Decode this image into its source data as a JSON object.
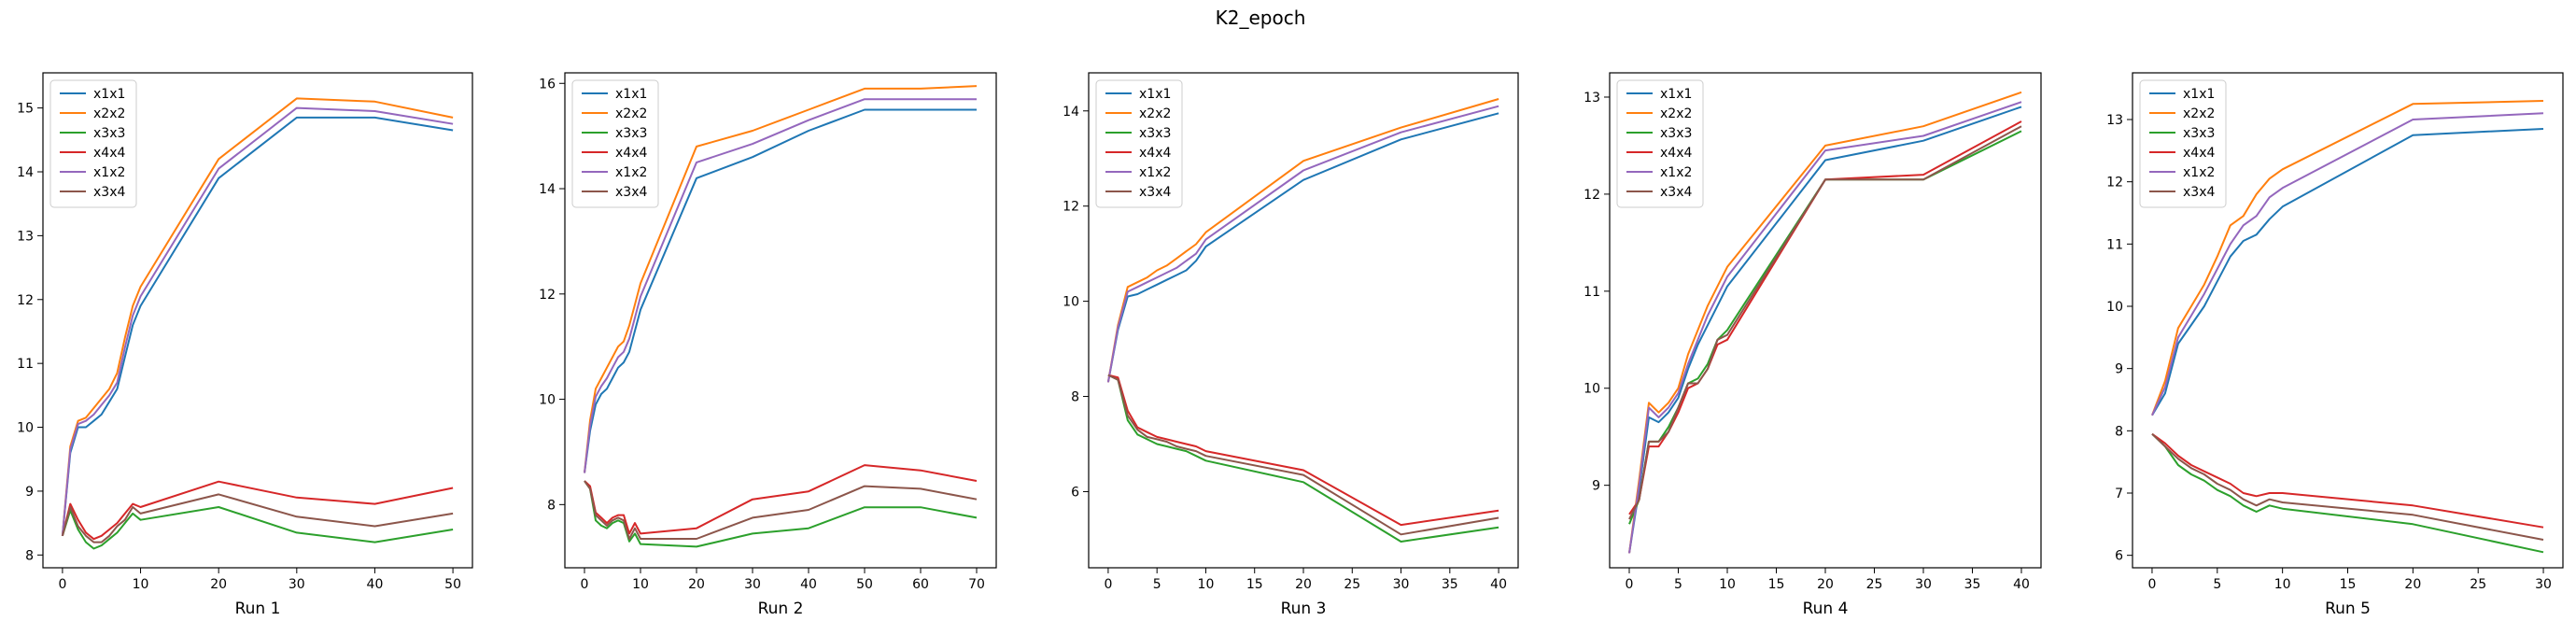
{
  "figure_title": "K2_epoch",
  "chart_data": [
    {
      "type": "line",
      "xlabel": "Run 1",
      "ylabel": "",
      "xlim": [
        -2.5,
        52.5
      ],
      "ylim": [
        7.8,
        15.55
      ],
      "xticks": [
        0,
        10,
        20,
        30,
        40,
        50
      ],
      "yticks": [
        8,
        9,
        10,
        11,
        12,
        13,
        14,
        15
      ],
      "legend_position": "upper-left",
      "grid": false,
      "x": [
        0,
        1,
        2,
        3,
        4,
        5,
        6,
        7,
        8,
        9,
        10,
        20,
        30,
        40,
        50
      ],
      "series": [
        {
          "name": "x1x1",
          "color": "#1f77b4",
          "values": [
            8.3,
            9.6,
            10.0,
            10.0,
            10.1,
            10.2,
            10.4,
            10.6,
            11.1,
            11.6,
            11.9,
            13.9,
            14.85,
            14.85,
            14.65
          ]
        },
        {
          "name": "x2x2",
          "color": "#ff7f0e",
          "values": [
            8.3,
            9.7,
            10.1,
            10.15,
            10.3,
            10.45,
            10.6,
            10.85,
            11.4,
            11.9,
            12.2,
            14.2,
            15.15,
            15.1,
            14.85
          ]
        },
        {
          "name": "x3x3",
          "color": "#2ca02c",
          "values": [
            8.3,
            8.7,
            8.4,
            8.2,
            8.1,
            8.15,
            8.25,
            8.35,
            8.5,
            8.65,
            8.55,
            8.75,
            8.35,
            8.2,
            8.4
          ]
        },
        {
          "name": "x4x4",
          "color": "#d62728",
          "values": [
            8.3,
            8.8,
            8.55,
            8.35,
            8.25,
            8.3,
            8.4,
            8.5,
            8.65,
            8.8,
            8.75,
            9.15,
            8.9,
            8.8,
            9.05
          ]
        },
        {
          "name": "x1x2",
          "color": "#9467bd",
          "values": [
            8.3,
            9.65,
            10.05,
            10.1,
            10.2,
            10.35,
            10.5,
            10.7,
            11.25,
            11.75,
            12.05,
            14.05,
            15.0,
            14.95,
            14.75
          ]
        },
        {
          "name": "x3x4",
          "color": "#8c564b",
          "values": [
            8.3,
            8.75,
            8.45,
            8.3,
            8.2,
            8.2,
            8.3,
            8.45,
            8.55,
            8.75,
            8.65,
            8.95,
            8.6,
            8.45,
            8.65
          ]
        }
      ]
    },
    {
      "type": "line",
      "xlabel": "Run 2",
      "ylabel": "",
      "xlim": [
        -3.5,
        73.5
      ],
      "ylim": [
        6.8,
        16.2
      ],
      "xticks": [
        0,
        10,
        20,
        30,
        40,
        50,
        60,
        70
      ],
      "yticks": [
        8,
        10,
        12,
        14,
        16
      ],
      "legend_position": "upper-left",
      "grid": false,
      "x": [
        0,
        1,
        2,
        3,
        4,
        5,
        6,
        7,
        8,
        9,
        10,
        20,
        30,
        40,
        50,
        60,
        70
      ],
      "series": [
        {
          "name": "x1x1",
          "color": "#1f77b4",
          "values": [
            8.6,
            9.4,
            9.9,
            10.1,
            10.2,
            10.4,
            10.6,
            10.7,
            10.9,
            11.3,
            11.7,
            14.2,
            14.6,
            15.1,
            15.5,
            15.5,
            15.5
          ]
        },
        {
          "name": "x2x2",
          "color": "#ff7f0e",
          "values": [
            8.6,
            9.6,
            10.2,
            10.4,
            10.6,
            10.8,
            11.0,
            11.1,
            11.4,
            11.8,
            12.2,
            14.8,
            15.1,
            15.5,
            15.9,
            15.9,
            15.95
          ]
        },
        {
          "name": "x3x3",
          "color": "#2ca02c",
          "values": [
            8.45,
            8.3,
            7.7,
            7.6,
            7.55,
            7.65,
            7.7,
            7.65,
            7.3,
            7.45,
            7.25,
            7.2,
            7.45,
            7.55,
            7.95,
            7.95,
            7.75
          ]
        },
        {
          "name": "x4x4",
          "color": "#d62728",
          "values": [
            8.45,
            8.35,
            7.85,
            7.75,
            7.65,
            7.75,
            7.8,
            7.8,
            7.45,
            7.65,
            7.45,
            7.55,
            8.1,
            8.25,
            8.75,
            8.65,
            8.45
          ]
        },
        {
          "name": "x1x2",
          "color": "#9467bd",
          "values": [
            8.6,
            9.5,
            10.05,
            10.25,
            10.4,
            10.6,
            10.8,
            10.9,
            11.15,
            11.55,
            11.95,
            14.5,
            14.85,
            15.3,
            15.7,
            15.7,
            15.7
          ]
        },
        {
          "name": "x3x4",
          "color": "#8c564b",
          "values": [
            8.45,
            8.3,
            7.8,
            7.7,
            7.6,
            7.7,
            7.75,
            7.7,
            7.35,
            7.55,
            7.35,
            7.35,
            7.75,
            7.9,
            8.35,
            8.3,
            8.1
          ]
        }
      ]
    },
    {
      "type": "line",
      "xlabel": "Run 3",
      "ylabel": "",
      "xlim": [
        -2.0,
        42.0
      ],
      "ylim": [
        4.4,
        14.8
      ],
      "xticks": [
        0,
        5,
        10,
        15,
        20,
        25,
        30,
        35,
        40
      ],
      "yticks": [
        6,
        8,
        10,
        12,
        14
      ],
      "legend_position": "upper-left",
      "grid": false,
      "x": [
        0,
        1,
        2,
        3,
        4,
        5,
        6,
        7,
        8,
        9,
        10,
        20,
        30,
        40
      ],
      "series": [
        {
          "name": "x1x1",
          "color": "#1f77b4",
          "values": [
            8.3,
            9.4,
            10.1,
            10.15,
            10.25,
            10.35,
            10.45,
            10.55,
            10.65,
            10.85,
            11.15,
            12.55,
            13.4,
            13.95
          ]
        },
        {
          "name": "x2x2",
          "color": "#ff7f0e",
          "values": [
            8.3,
            9.5,
            10.3,
            10.4,
            10.5,
            10.65,
            10.75,
            10.9,
            11.05,
            11.2,
            11.45,
            12.95,
            13.65,
            14.25
          ]
        },
        {
          "name": "x3x3",
          "color": "#2ca02c",
          "values": [
            8.45,
            8.35,
            7.5,
            7.2,
            7.1,
            7.0,
            6.95,
            6.9,
            6.85,
            6.75,
            6.65,
            6.2,
            4.95,
            5.25
          ]
        },
        {
          "name": "x4x4",
          "color": "#d62728",
          "values": [
            8.45,
            8.4,
            7.7,
            7.35,
            7.25,
            7.15,
            7.1,
            7.05,
            7.0,
            6.95,
            6.85,
            6.45,
            5.3,
            5.6
          ]
        },
        {
          "name": "x1x2",
          "color": "#9467bd",
          "values": [
            8.3,
            9.45,
            10.2,
            10.3,
            10.4,
            10.5,
            10.6,
            10.7,
            10.85,
            11.0,
            11.3,
            12.75,
            13.55,
            14.1
          ]
        },
        {
          "name": "x3x4",
          "color": "#8c564b",
          "values": [
            8.45,
            8.35,
            7.6,
            7.3,
            7.15,
            7.1,
            7.05,
            6.95,
            6.9,
            6.85,
            6.75,
            6.35,
            5.1,
            5.45
          ]
        }
      ]
    },
    {
      "type": "line",
      "xlabel": "Run 4",
      "ylabel": "",
      "xlim": [
        -2.0,
        42.0
      ],
      "ylim": [
        8.15,
        13.25
      ],
      "xticks": [
        0,
        5,
        10,
        15,
        20,
        25,
        30,
        35,
        40
      ],
      "yticks": [
        9,
        10,
        11,
        12,
        13
      ],
      "legend_position": "upper-left",
      "grid": false,
      "x": [
        0,
        1,
        2,
        3,
        4,
        5,
        6,
        7,
        8,
        9,
        10,
        20,
        30,
        40
      ],
      "series": [
        {
          "name": "x1x1",
          "color": "#1f77b4",
          "values": [
            8.3,
            8.95,
            9.7,
            9.65,
            9.75,
            9.9,
            10.2,
            10.45,
            10.65,
            10.85,
            11.05,
            12.35,
            12.55,
            12.9
          ]
        },
        {
          "name": "x2x2",
          "color": "#ff7f0e",
          "values": [
            8.3,
            9.05,
            9.85,
            9.75,
            9.85,
            10.0,
            10.35,
            10.6,
            10.85,
            11.05,
            11.25,
            12.5,
            12.7,
            13.05
          ]
        },
        {
          "name": "x3x3",
          "color": "#2ca02c",
          "values": [
            8.6,
            8.85,
            9.45,
            9.45,
            9.6,
            9.8,
            10.05,
            10.1,
            10.25,
            10.5,
            10.6,
            12.15,
            12.15,
            12.65
          ]
        },
        {
          "name": "x4x4",
          "color": "#d62728",
          "values": [
            8.7,
            8.85,
            9.4,
            9.4,
            9.55,
            9.75,
            10.0,
            10.05,
            10.2,
            10.45,
            10.5,
            12.15,
            12.2,
            12.75
          ]
        },
        {
          "name": "x1x2",
          "color": "#9467bd",
          "values": [
            8.3,
            9.0,
            9.8,
            9.7,
            9.8,
            9.95,
            10.25,
            10.5,
            10.75,
            10.95,
            11.15,
            12.45,
            12.6,
            12.95
          ]
        },
        {
          "name": "x3x4",
          "color": "#8c564b",
          "values": [
            8.65,
            8.85,
            9.45,
            9.45,
            9.55,
            9.8,
            10.05,
            10.05,
            10.2,
            10.5,
            10.55,
            12.15,
            12.15,
            12.7
          ]
        }
      ]
    },
    {
      "type": "line",
      "xlabel": "Run 5",
      "ylabel": "",
      "xlim": [
        -1.5,
        31.5
      ],
      "ylim": [
        5.8,
        13.75
      ],
      "xticks": [
        0,
        5,
        10,
        15,
        20,
        25,
        30
      ],
      "yticks": [
        6,
        7,
        8,
        9,
        10,
        11,
        12,
        13
      ],
      "legend_position": "upper-left",
      "grid": false,
      "x": [
        0,
        1,
        2,
        3,
        4,
        5,
        6,
        7,
        8,
        9,
        10,
        20,
        30
      ],
      "series": [
        {
          "name": "x1x1",
          "color": "#1f77b4",
          "values": [
            8.25,
            8.6,
            9.4,
            9.7,
            10.0,
            10.4,
            10.8,
            11.05,
            11.15,
            11.4,
            11.6,
            12.75,
            12.85
          ]
        },
        {
          "name": "x2x2",
          "color": "#ff7f0e",
          "values": [
            8.25,
            8.8,
            9.65,
            10.0,
            10.35,
            10.8,
            11.3,
            11.45,
            11.8,
            12.05,
            12.2,
            13.25,
            13.3
          ]
        },
        {
          "name": "x3x3",
          "color": "#2ca02c",
          "values": [
            7.95,
            7.75,
            7.45,
            7.3,
            7.2,
            7.05,
            6.95,
            6.8,
            6.7,
            6.8,
            6.75,
            6.5,
            6.05
          ]
        },
        {
          "name": "x4x4",
          "color": "#d62728",
          "values": [
            7.95,
            7.8,
            7.6,
            7.45,
            7.35,
            7.25,
            7.15,
            7.0,
            6.95,
            7.0,
            7.0,
            6.8,
            6.45
          ]
        },
        {
          "name": "x1x2",
          "color": "#9467bd",
          "values": [
            8.25,
            8.7,
            9.5,
            9.85,
            10.2,
            10.6,
            11.0,
            11.3,
            11.45,
            11.75,
            11.9,
            13.0,
            13.1
          ]
        },
        {
          "name": "x3x4",
          "color": "#8c564b",
          "values": [
            7.95,
            7.75,
            7.55,
            7.4,
            7.3,
            7.15,
            7.05,
            6.9,
            6.8,
            6.9,
            6.85,
            6.65,
            6.25
          ]
        }
      ]
    }
  ]
}
